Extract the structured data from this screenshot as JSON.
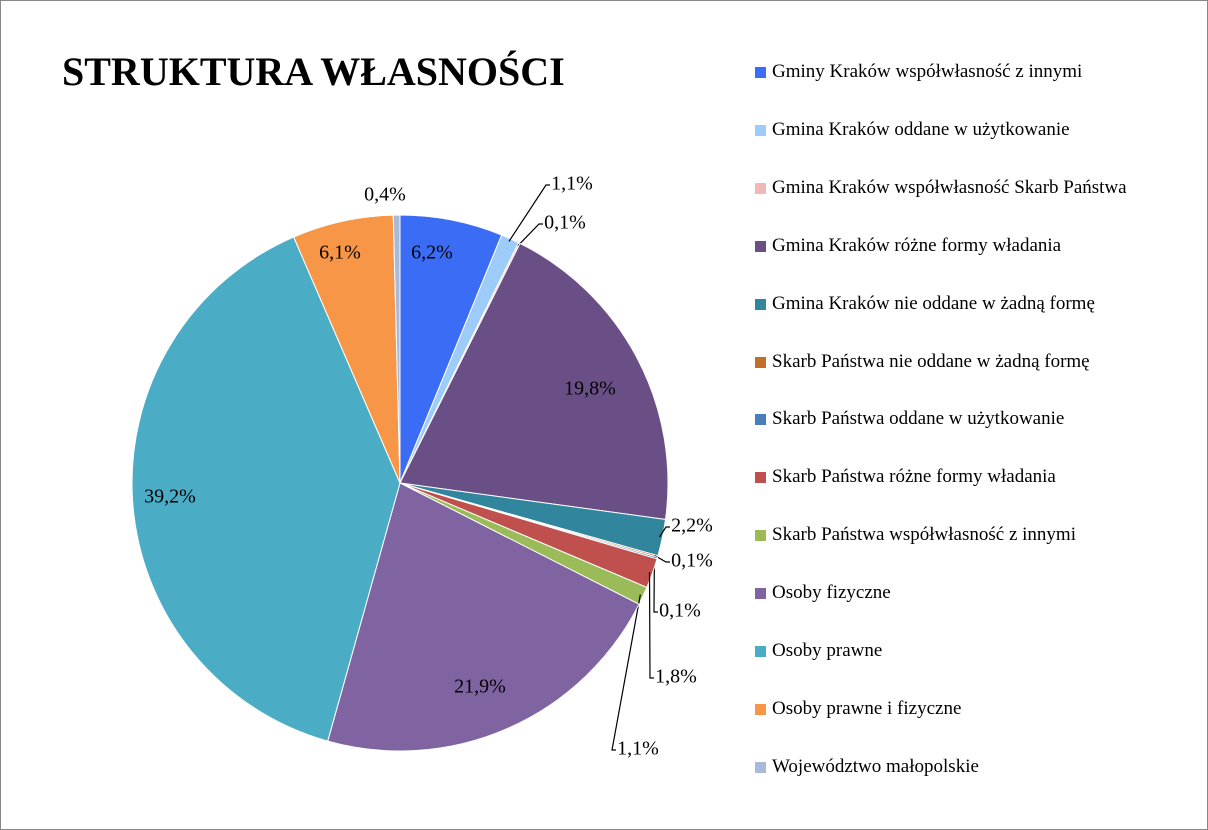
{
  "chart_data": {
    "type": "pie",
    "title": "STRUKTURA WŁASNOŚCI",
    "categories": [
      "Gminy Kraków współwłasność z innymi",
      "Gmina Kraków oddane w użytkowanie",
      "Gmina Kraków współwłasność Skarb Państwa",
      "Gmina Kraków różne formy władania",
      "Gmina Kraków nie oddane w żadną formę",
      "Skarb Państwa nie oddane w żadną formę",
      "Skarb Państwa oddane w użytkowanie",
      "Skarb Państwa różne formy władania",
      "Skarb Państwa współwłasność z innymi",
      "Osoby fizyczne",
      "Osoby prawne",
      "Osoby prawne i fizyczne",
      "Województwo małopolskie"
    ],
    "values": [
      6.2,
      1.1,
      0.1,
      19.8,
      2.2,
      0.1,
      0.1,
      1.8,
      1.1,
      21.9,
      39.2,
      6.1,
      0.4
    ],
    "value_labels": [
      "6,2%",
      "1,1%",
      "0,1%",
      "19,8%",
      "2,2%",
      "0,1%",
      "0,1%",
      "1,8%",
      "1,1%",
      "21,9%",
      "39,2%",
      "6,1%",
      "0,4%"
    ],
    "colors": [
      "#3b6cf5",
      "#9dcbfa",
      "#f2b8b8",
      "#6a4f86",
      "#31859c",
      "#c0702a",
      "#4a7ebb",
      "#c0504d",
      "#9bbb59",
      "#8064a2",
      "#4bacc6",
      "#f79646",
      "#a9b9d8"
    ],
    "legend": "right"
  }
}
